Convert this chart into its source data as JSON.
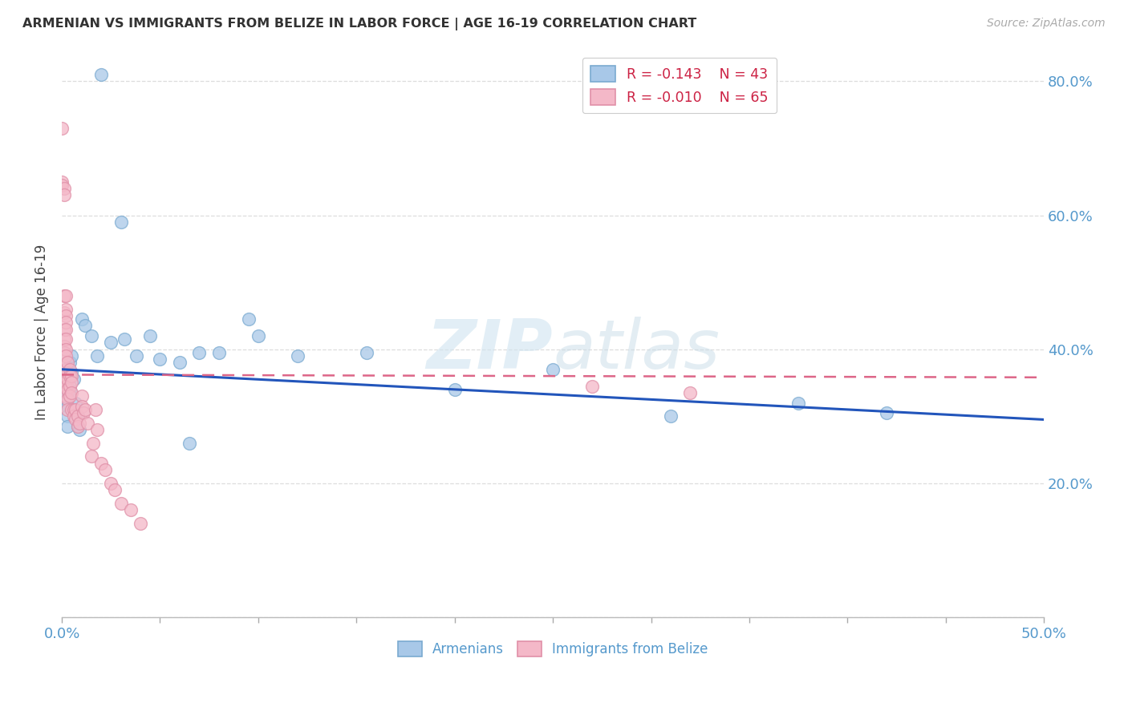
{
  "title": "ARMENIAN VS IMMIGRANTS FROM BELIZE IN LABOR FORCE | AGE 16-19 CORRELATION CHART",
  "source": "Source: ZipAtlas.com",
  "ylabel": "In Labor Force | Age 16-19",
  "xlim": [
    0.0,
    0.5
  ],
  "ylim": [
    0.0,
    0.85
  ],
  "armenian_color": "#a8c8e8",
  "armenian_edge": "#7aaad0",
  "belize_color": "#f4b8c8",
  "belize_edge": "#e090a8",
  "armenian_R": -0.143,
  "armenian_N": 43,
  "belize_R": -0.01,
  "belize_N": 65,
  "armenian_trend_color": "#2255bb",
  "belize_trend_color": "#dd6688",
  "background_color": "#ffffff",
  "grid_color": "#dddddd",
  "watermark": "ZIPatlas",
  "armenian_x": [
    0.001,
    0.001,
    0.002,
    0.002,
    0.002,
    0.003,
    0.003,
    0.003,
    0.003,
    0.004,
    0.004,
    0.004,
    0.005,
    0.005,
    0.006,
    0.007,
    0.008,
    0.008,
    0.009,
    0.01,
    0.012,
    0.015,
    0.018,
    0.02,
    0.025,
    0.03,
    0.032,
    0.038,
    0.045,
    0.05,
    0.06,
    0.065,
    0.07,
    0.08,
    0.095,
    0.1,
    0.12,
    0.155,
    0.2,
    0.25,
    0.31,
    0.375,
    0.42
  ],
  "armenian_y": [
    0.395,
    0.36,
    0.355,
    0.34,
    0.32,
    0.33,
    0.315,
    0.3,
    0.285,
    0.38,
    0.36,
    0.34,
    0.39,
    0.365,
    0.355,
    0.32,
    0.3,
    0.285,
    0.28,
    0.445,
    0.435,
    0.42,
    0.39,
    0.81,
    0.41,
    0.59,
    0.415,
    0.39,
    0.42,
    0.385,
    0.38,
    0.26,
    0.395,
    0.395,
    0.445,
    0.42,
    0.39,
    0.395,
    0.34,
    0.37,
    0.3,
    0.32,
    0.305
  ],
  "belize_x": [
    0.0,
    0.0,
    0.0,
    0.0,
    0.001,
    0.001,
    0.001,
    0.001,
    0.001,
    0.001,
    0.001,
    0.001,
    0.001,
    0.001,
    0.002,
    0.002,
    0.002,
    0.002,
    0.002,
    0.002,
    0.002,
    0.002,
    0.002,
    0.002,
    0.002,
    0.002,
    0.003,
    0.003,
    0.003,
    0.003,
    0.003,
    0.003,
    0.004,
    0.004,
    0.004,
    0.004,
    0.005,
    0.005,
    0.005,
    0.005,
    0.006,
    0.006,
    0.007,
    0.007,
    0.008,
    0.008,
    0.009,
    0.01,
    0.01,
    0.011,
    0.012,
    0.013,
    0.015,
    0.016,
    0.017,
    0.018,
    0.02,
    0.022,
    0.025,
    0.027,
    0.03,
    0.035,
    0.04,
    0.27,
    0.32
  ],
  "belize_y": [
    0.73,
    0.65,
    0.645,
    0.35,
    0.64,
    0.63,
    0.48,
    0.455,
    0.43,
    0.415,
    0.405,
    0.395,
    0.375,
    0.35,
    0.48,
    0.46,
    0.45,
    0.44,
    0.43,
    0.415,
    0.4,
    0.39,
    0.37,
    0.355,
    0.345,
    0.33,
    0.38,
    0.365,
    0.355,
    0.34,
    0.325,
    0.31,
    0.37,
    0.36,
    0.345,
    0.33,
    0.36,
    0.35,
    0.335,
    0.31,
    0.31,
    0.3,
    0.31,
    0.295,
    0.3,
    0.285,
    0.29,
    0.33,
    0.315,
    0.305,
    0.31,
    0.29,
    0.24,
    0.26,
    0.31,
    0.28,
    0.23,
    0.22,
    0.2,
    0.19,
    0.17,
    0.16,
    0.14,
    0.345,
    0.335
  ],
  "armenian_trendline_x": [
    0.0,
    0.5
  ],
  "armenian_trendline_y": [
    0.37,
    0.295
  ],
  "belize_trendline_x": [
    0.0,
    0.5
  ],
  "belize_trendline_y": [
    0.362,
    0.358
  ]
}
